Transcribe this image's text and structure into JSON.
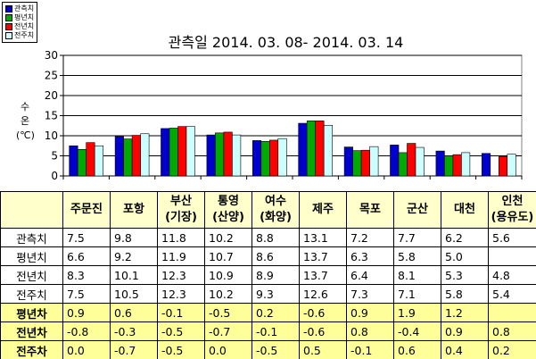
{
  "legend": [
    {
      "label": "관측치",
      "color": "#0000cc"
    },
    {
      "label": "평년치",
      "color": "#00aa00"
    },
    {
      "label": "전년치",
      "color": "#ff0000"
    },
    {
      "label": "전주치",
      "color": "#ccffff"
    }
  ],
  "chart_data": {
    "type": "bar",
    "title": "관측일 2014. 03. 08-  2014. 03. 14",
    "ylabel": [
      "수",
      "온",
      "(℃)"
    ],
    "ylim": [
      0,
      30
    ],
    "yticks": [
      0,
      5,
      10,
      15,
      20,
      25,
      30
    ],
    "grid": true,
    "categories": [
      "주문진",
      "포항",
      "부산 (기장)",
      "통영 (산양)",
      "여수 (화양)",
      "제주",
      "목포",
      "군산",
      "대천",
      "인천 (용유도)"
    ],
    "series": [
      {
        "name": "관측치",
        "color": "#0000cc",
        "values": [
          7.5,
          9.8,
          11.8,
          10.2,
          8.8,
          13.1,
          7.2,
          7.7,
          6.2,
          5.6
        ]
      },
      {
        "name": "평년치",
        "color": "#00aa00",
        "values": [
          6.6,
          9.2,
          11.9,
          10.7,
          8.6,
          13.7,
          6.3,
          5.8,
          5.0,
          null
        ]
      },
      {
        "name": "전년치",
        "color": "#ff0000",
        "values": [
          8.3,
          10.1,
          12.3,
          10.9,
          8.9,
          13.7,
          6.4,
          8.1,
          5.3,
          4.8
        ]
      },
      {
        "name": "전주치",
        "color": "#ccffff",
        "values": [
          7.5,
          10.5,
          12.3,
          10.2,
          9.3,
          12.6,
          7.3,
          7.1,
          5.8,
          5.4
        ]
      }
    ]
  },
  "table": {
    "headers": [
      [
        "주문진"
      ],
      [
        "포항"
      ],
      [
        "부산",
        "(기장)"
      ],
      [
        "통영",
        "(산양)"
      ],
      [
        "여수",
        "(화양)"
      ],
      [
        "제주"
      ],
      [
        "목포"
      ],
      [
        "군산"
      ],
      [
        "대천"
      ],
      [
        "인천",
        "(용유도)"
      ]
    ],
    "rows": [
      {
        "label": "관측치",
        "diff": false,
        "values": [
          "7.5",
          "9.8",
          "11.8",
          "10.2",
          "8.8",
          "13.1",
          "7.2",
          "7.7",
          "6.2",
          "5.6"
        ]
      },
      {
        "label": "평년치",
        "diff": false,
        "values": [
          "6.6",
          "9.2",
          "11.9",
          "10.7",
          "8.6",
          "13.7",
          "6.3",
          "5.8",
          "5.0",
          ""
        ]
      },
      {
        "label": "전년치",
        "diff": false,
        "values": [
          "8.3",
          "10.1",
          "12.3",
          "10.9",
          "8.9",
          "13.7",
          "6.4",
          "8.1",
          "5.3",
          "4.8"
        ]
      },
      {
        "label": "전주치",
        "diff": false,
        "values": [
          "7.5",
          "10.5",
          "12.3",
          "10.2",
          "9.3",
          "12.6",
          "7.3",
          "7.1",
          "5.8",
          "5.4"
        ]
      },
      {
        "label": "평년차",
        "diff": true,
        "values": [
          "0.9",
          "0.6",
          "-0.1",
          "-0.5",
          "0.2",
          "-0.6",
          "0.9",
          "1.9",
          "1.2",
          ""
        ]
      },
      {
        "label": "전년차",
        "diff": true,
        "values": [
          "-0.8",
          "-0.3",
          "-0.5",
          "-0.7",
          "-0.1",
          "-0.6",
          "0.8",
          "-0.4",
          "0.9",
          "0.8"
        ]
      },
      {
        "label": "전주차",
        "diff": true,
        "values": [
          "0.0",
          "-0.7",
          "-0.5",
          "0.0",
          "-0.5",
          "0.5",
          "-0.1",
          "0.6",
          "0.4",
          "0.2"
        ]
      }
    ]
  }
}
